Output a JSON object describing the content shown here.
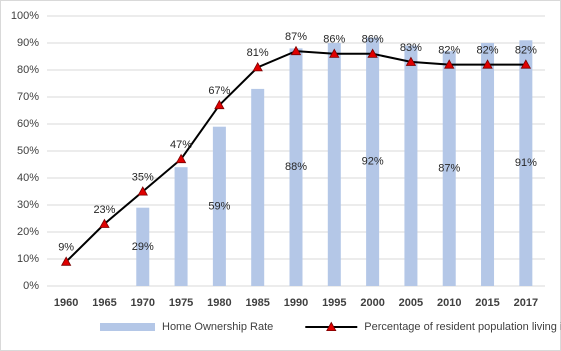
{
  "chart_data": {
    "type": "bar-line",
    "categories": [
      "1960",
      "1965",
      "1970",
      "1975",
      "1980",
      "1985",
      "1990",
      "1995",
      "2000",
      "2005",
      "2010",
      "2015",
      "2017"
    ],
    "series": [
      {
        "name": "Home Ownership Rate",
        "type": "bar",
        "color": "#b4c7e7",
        "values": [
          null,
          null,
          29,
          44,
          59,
          73,
          88,
          90,
          92,
          89,
          87,
          90,
          91
        ],
        "value_labels": [
          null,
          null,
          "29%",
          null,
          "59%",
          null,
          "88%",
          null,
          "92%",
          null,
          "87%",
          null,
          "91%"
        ]
      },
      {
        "name": "Percentage of resident population living in HDB flats",
        "type": "line",
        "color": "#000000",
        "marker_color": "#e00000",
        "values": [
          9,
          23,
          35,
          47,
          67,
          81,
          87,
          86,
          86,
          83,
          82,
          82,
          82
        ],
        "value_labels": [
          "9%",
          "23%",
          "35%",
          "47%",
          "67%",
          "81%",
          "87%",
          "86%",
          "86%",
          "83%",
          "82%",
          "82%",
          "82%"
        ]
      }
    ],
    "ylim": [
      0,
      100
    ],
    "yticks": [
      {
        "value": 0,
        "label": "0%"
      },
      {
        "value": 10,
        "label": "10%"
      },
      {
        "value": 20,
        "label": "20%"
      },
      {
        "value": 30,
        "label": "30%"
      },
      {
        "value": 40,
        "label": "40%"
      },
      {
        "value": 50,
        "label": "50%"
      },
      {
        "value": 60,
        "label": "60%"
      },
      {
        "value": 70,
        "label": "70%"
      },
      {
        "value": 80,
        "label": "80%"
      },
      {
        "value": 90,
        "label": "90%"
      },
      {
        "value": 100,
        "label": "100%"
      }
    ],
    "grid": true,
    "legend": "bottom"
  }
}
